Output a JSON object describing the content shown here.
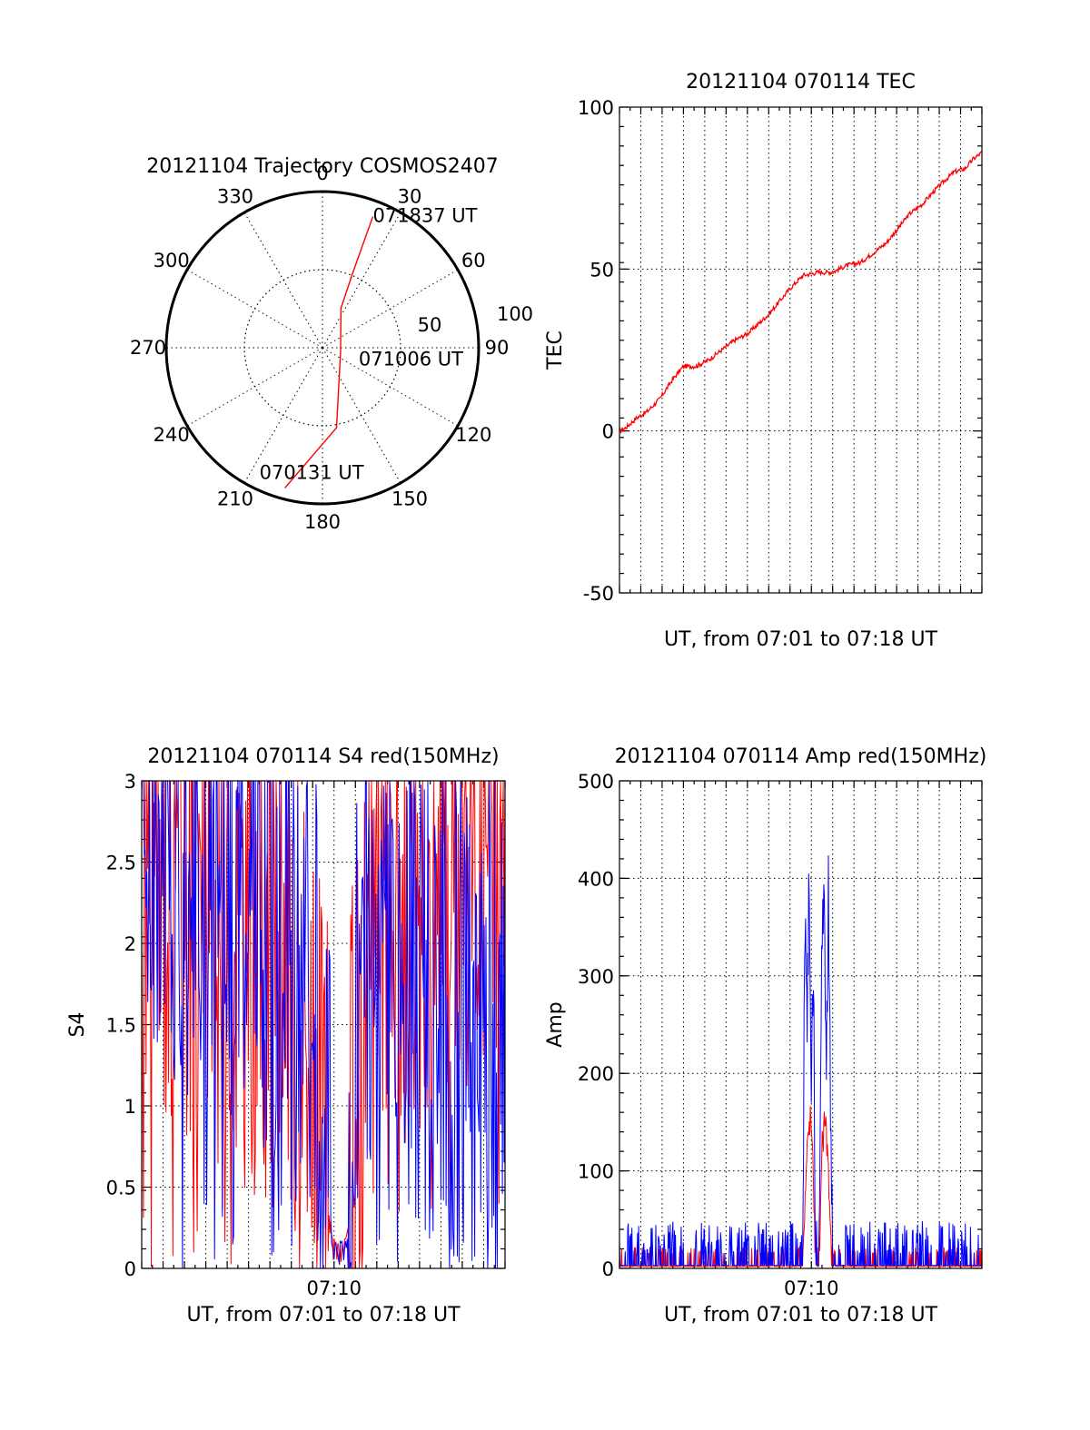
{
  "chart_data": [
    {
      "type": "polar",
      "title": "20121104 Trajectory COSMOS2407",
      "angle_labels": [
        "0",
        "30",
        "60",
        "90",
        "120",
        "150",
        "180",
        "210",
        "240",
        "270",
        "300",
        "330"
      ],
      "ring_labels": [
        "50",
        "100"
      ],
      "series": [
        {
          "color": "#ff0000",
          "points": [
            {
              "azimuth": 195,
              "zenith": 93
            },
            {
              "azimuth": 170,
              "zenith": 52
            },
            {
              "azimuth": 105,
              "zenith": 12
            },
            {
              "azimuth": 25,
              "zenith": 28
            },
            {
              "azimuth": 22,
              "zenith": 52
            },
            {
              "azimuth": 21,
              "zenith": 90
            }
          ]
        }
      ],
      "annotations": [
        {
          "text": "071837 UT",
          "azimuth": 21,
          "zenith": 90
        },
        {
          "text": "071006 UT",
          "azimuth": 105,
          "zenith": 12
        },
        {
          "text": "070131 UT",
          "azimuth": 195,
          "zenith": 93
        }
      ]
    },
    {
      "type": "line",
      "title": "20121104 070114 TEC",
      "xlabel": "UT, from 07:01 to 07:18 UT",
      "ylabel": "TEC",
      "xlim": [
        0,
        17
      ],
      "ylim": [
        -50,
        100
      ],
      "yticks": [
        "100",
        "50",
        "0",
        "-50"
      ],
      "xtick_labels": [],
      "grid": true,
      "series": [
        {
          "color": "#ff0000",
          "x": [
            0,
            0.3,
            0.8,
            1.3,
            1.9,
            2.5,
            3.0,
            3.6,
            4.2,
            4.8,
            5.4,
            6.0,
            6.5,
            7.0,
            7.5,
            8.0,
            8.6,
            9.3,
            10.0,
            10.6,
            11.3,
            11.9,
            12.5,
            13.0,
            13.6,
            14.2,
            14.6,
            15.2,
            15.7,
            16.2,
            16.6,
            17.0
          ],
          "values": [
            0,
            1,
            4,
            6,
            10,
            16,
            20,
            20,
            22,
            25,
            28,
            30,
            33,
            36,
            40,
            44,
            48,
            49,
            49,
            51,
            52,
            55,
            58,
            62,
            67,
            70,
            73,
            77,
            80,
            81,
            84,
            86
          ]
        }
      ]
    },
    {
      "type": "line",
      "title": "20121104 070114 S4 red(150MHz)",
      "xlabel": "UT, from 07:01 to 07:18 UT",
      "ylabel": "S4",
      "xlim": [
        0,
        17
      ],
      "ylim": [
        0,
        3
      ],
      "yticks": [
        "3",
        "2.5",
        "2",
        "1.5",
        "1",
        "0.5",
        "0"
      ],
      "xtick_labels": [
        {
          "label": "07:10",
          "x": 9
        }
      ],
      "grid": true,
      "series": [
        {
          "color": "#ff0000",
          "x": [
            0,
            1.5,
            3,
            4.5,
            6,
            7,
            7.5,
            8,
            8.3,
            8.6,
            8.9,
            9.1,
            9.3,
            9.6,
            9.9,
            10.2,
            10.6,
            11,
            12,
            13,
            14,
            15,
            16,
            17
          ],
          "values": [
            2.3,
            2.4,
            2.2,
            2.1,
            2.0,
            1.8,
            1.5,
            1.2,
            0.9,
            0.7,
            0.12,
            0.1,
            0.1,
            0.12,
            1.0,
            1.3,
            1.7,
            2.0,
            2.2,
            2.4,
            2.6,
            2.7,
            2.8,
            2.9
          ]
        },
        {
          "color": "#0000ff",
          "x": [
            0,
            1.5,
            3,
            4.5,
            6,
            7,
            7.5,
            8,
            8.3,
            8.6,
            8.9,
            9.1,
            9.3,
            9.6,
            9.9,
            10.2,
            10.6,
            11,
            12,
            13,
            14,
            15,
            16,
            17
          ],
          "values": [
            2.6,
            2.7,
            2.6,
            2.5,
            2.3,
            2.1,
            1.9,
            1.6,
            1.3,
            1.1,
            0.1,
            0.08,
            0.1,
            0.1,
            1.4,
            1.8,
            2.2,
            2.0,
            1.9,
            1.8,
            1.7,
            1.6,
            1.6,
            1.5
          ]
        }
      ]
    },
    {
      "type": "line",
      "title": "20121104 070114 Amp red(150MHz)",
      "xlabel": "UT, from 07:01 to 07:18 UT",
      "ylabel": "Amp",
      "xlim": [
        0,
        17
      ],
      "ylim": [
        0,
        500
      ],
      "yticks": [
        "500",
        "400",
        "300",
        "200",
        "100",
        "0"
      ],
      "xtick_labels": [
        {
          "label": "07:10",
          "x": 9
        }
      ],
      "grid": true,
      "series": [
        {
          "color": "#ff0000",
          "x": [
            0,
            8,
            8.6,
            8.75,
            8.9,
            9.05,
            9.2,
            9.35,
            9.5,
            9.65,
            9.8,
            10.0,
            12,
            17
          ],
          "values": [
            2,
            2,
            5,
            100,
            160,
            120,
            5,
            5,
            120,
            150,
            100,
            3,
            2,
            2
          ]
        },
        {
          "color": "#0000ff",
          "x": [
            0,
            8,
            8.6,
            8.7,
            8.8,
            8.9,
            9.0,
            9.1,
            9.2,
            9.35,
            9.5,
            9.6,
            9.7,
            9.8,
            9.9,
            10.0,
            12,
            12.5,
            17
          ],
          "values": [
            3,
            3,
            5,
            380,
            250,
            400,
            200,
            300,
            10,
            5,
            330,
            420,
            200,
            390,
            150,
            5,
            3,
            6,
            3
          ]
        }
      ]
    }
  ]
}
